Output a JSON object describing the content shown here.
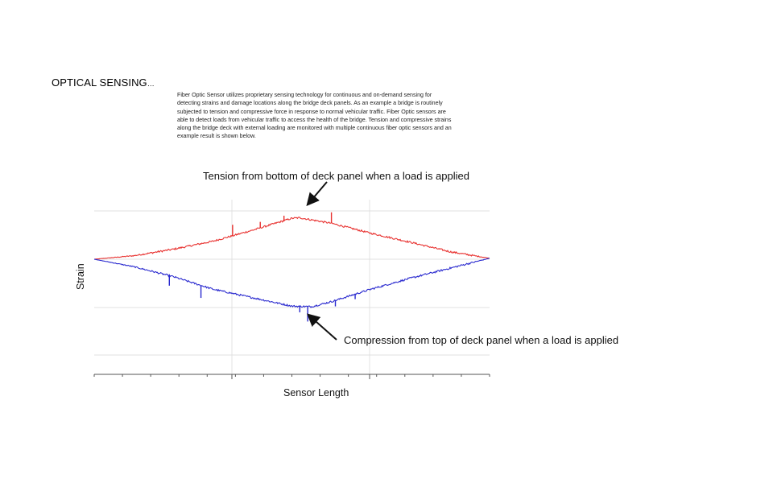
{
  "slide": {
    "title": "OPTICAL SENSING",
    "title_ellipsis": "…",
    "description_lines": [
      "Fiber Optic Sensor utilizes proprietary sensing technology for continuous and  on-demand sensing for",
      "detecting strains and damage  locations along the bridge deck panels.  As an example a bridge is routinely",
      "subjected to tension and compressive force in response to normal vehicular traffic. Fiber Optic sensors are",
      "able to detect loads from vehicular traffic to access the health of the bridge. Tension and compressive strains",
      "along the bridge deck with external loading are monitored with multiple continuous fiber optic sensors and an",
      "example result is shown below."
    ]
  },
  "chart_data": {
    "type": "line",
    "title": "",
    "xlabel": "Sensor Length",
    "ylabel": "Strain",
    "grid": true,
    "x_tick_labels": [],
    "y_tick_labels": [],
    "annotations": [
      {
        "text": "Tension from bottom of deck panel when a load is applied",
        "points_to": "tension"
      },
      {
        "text": "Compression  from top of deck panel when a load is applied",
        "points_to": "compression"
      }
    ],
    "series": [
      {
        "key": "tension",
        "color": "#e8312f",
        "x": [
          0,
          0.1,
          0.2,
          0.3,
          0.4,
          0.5,
          0.52,
          0.6,
          0.7,
          0.8,
          0.9,
          1.0
        ],
        "y": [
          0,
          0.07,
          0.2,
          0.36,
          0.58,
          0.82,
          0.83,
          0.72,
          0.52,
          0.34,
          0.15,
          0.02
        ]
      },
      {
        "key": "compression",
        "color": "#2a2acf",
        "x": [
          0,
          0.1,
          0.2,
          0.3,
          0.4,
          0.5,
          0.55,
          0.6,
          0.7,
          0.8,
          0.9,
          1.0
        ],
        "y": [
          0,
          -0.15,
          -0.35,
          -0.6,
          -0.77,
          -0.94,
          -0.95,
          -0.85,
          -0.6,
          -0.38,
          -0.18,
          0.02
        ]
      }
    ],
    "spikes": {
      "tension": [
        [
          0.35,
          0.22
        ],
        [
          0.42,
          0.12
        ],
        [
          0.48,
          0.1
        ],
        [
          0.6,
          0.22
        ]
      ],
      "compression": [
        [
          0.19,
          -0.2
        ],
        [
          0.27,
          -0.25
        ],
        [
          0.52,
          -0.12
        ],
        [
          0.54,
          -0.3
        ],
        [
          0.61,
          -0.12
        ],
        [
          0.66,
          -0.1
        ]
      ]
    }
  }
}
